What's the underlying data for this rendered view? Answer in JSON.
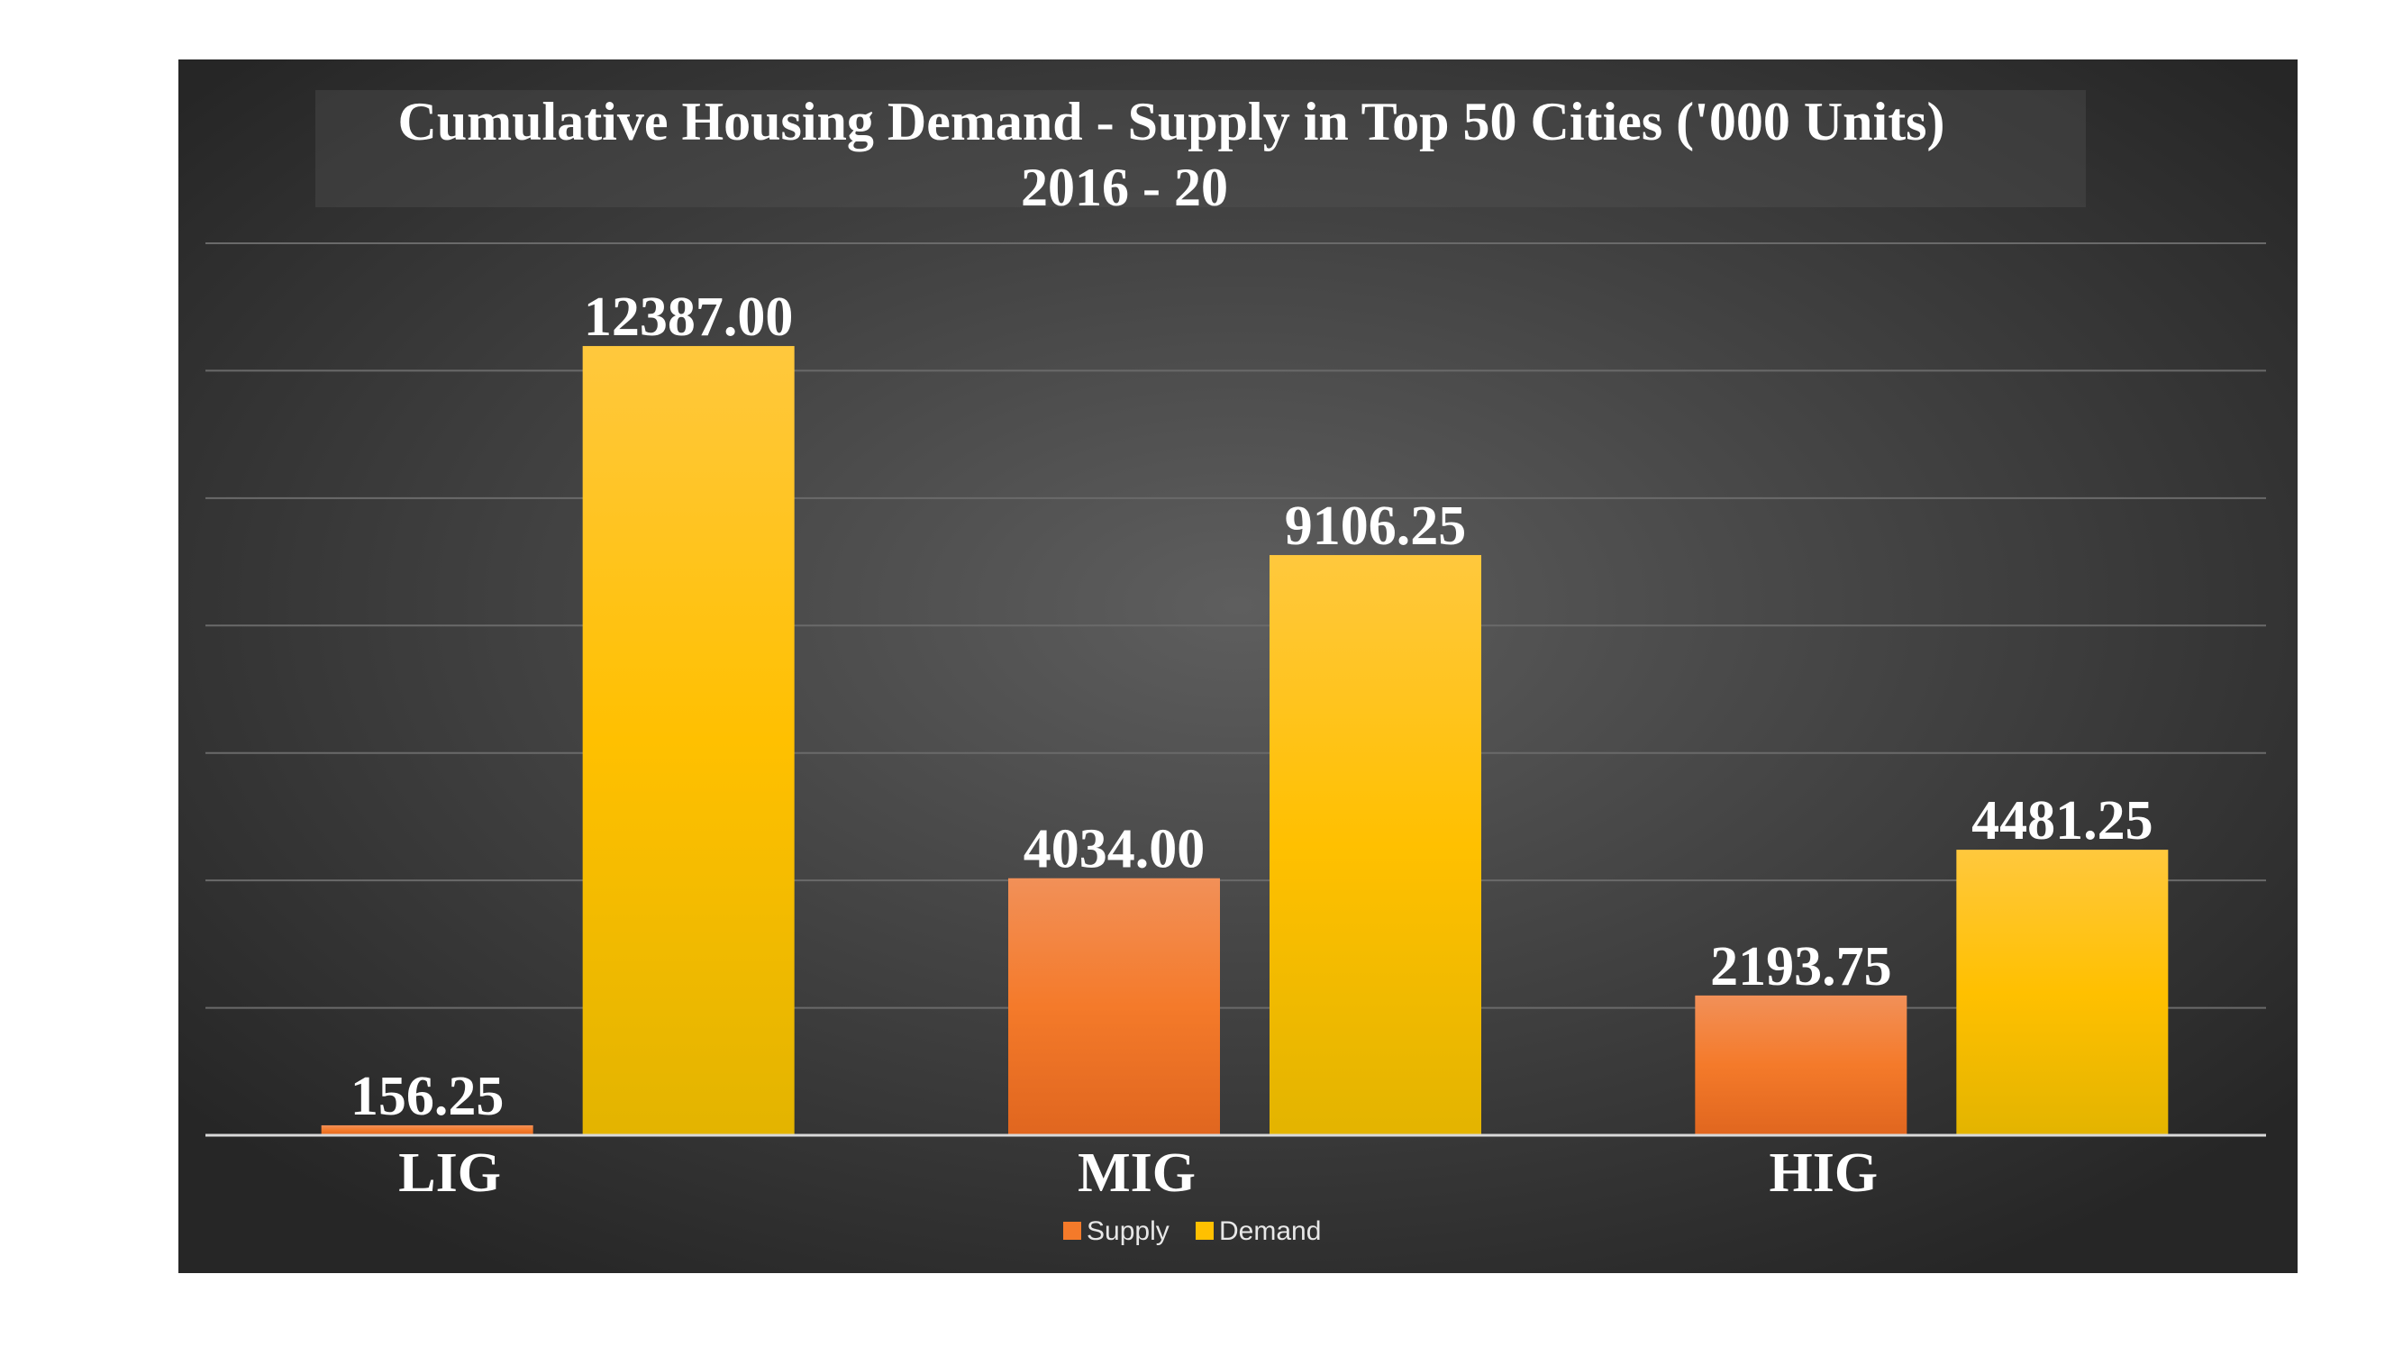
{
  "chart_data": {
    "type": "bar",
    "title": "Cumulative Housing Demand - Supply in Top 50 Cities ('000 Units)",
    "subtitle": "2016 - 20",
    "categories": [
      "LIG",
      "MIG",
      "HIG"
    ],
    "series": [
      {
        "name": "Supply",
        "values": [
          156.25,
          4034.0,
          2193.75
        ],
        "labels": [
          "156.25",
          "4034.00",
          "2193.75"
        ]
      },
      {
        "name": "Demand",
        "values": [
          12387.0,
          9106.25,
          4481.25
        ],
        "labels": [
          "12387.00",
          "9106.25",
          "4481.25"
        ]
      }
    ],
    "ylim": [
      0,
      14000
    ],
    "grid": true,
    "legend": "bottom-center",
    "colors": {
      "background_light": "#5e5e5e",
      "background_dark": "#262626",
      "supply_top": "#f29058",
      "supply_mid": "#f47a2a",
      "supply_bottom": "#e0661f",
      "demand_top": "#ffc83d",
      "demand_mid": "#ffc000",
      "demand_bottom": "#e3b400",
      "text": "#ffffff",
      "legend_text": "#e8e8e8"
    }
  }
}
